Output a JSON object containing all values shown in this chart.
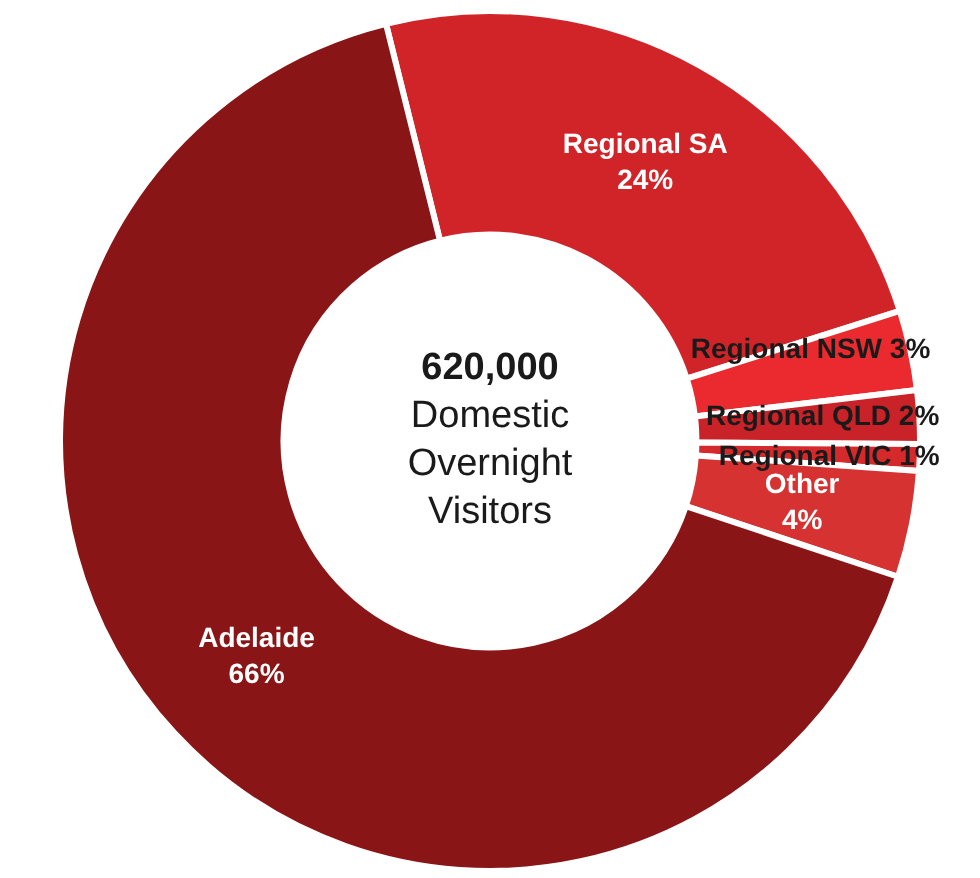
{
  "chart_data": {
    "type": "donut",
    "categories": [
      "Regional SA",
      "Regional NSW",
      "Regional QLD",
      "Regional VIC",
      "Other",
      "Adelaide"
    ],
    "values": [
      24,
      3,
      2,
      1,
      4,
      66
    ],
    "value_labels": [
      "24%",
      "3%",
      "2%",
      "1%",
      "4%",
      "66%"
    ],
    "colors": [
      "#d12429",
      "#ea2a2e",
      "#c92228",
      "#d5292b",
      "#d63232",
      "#8a1517"
    ],
    "annotations": [
      "620,000",
      "Domestic Overnight Visitors"
    ],
    "legend": false
  }
}
